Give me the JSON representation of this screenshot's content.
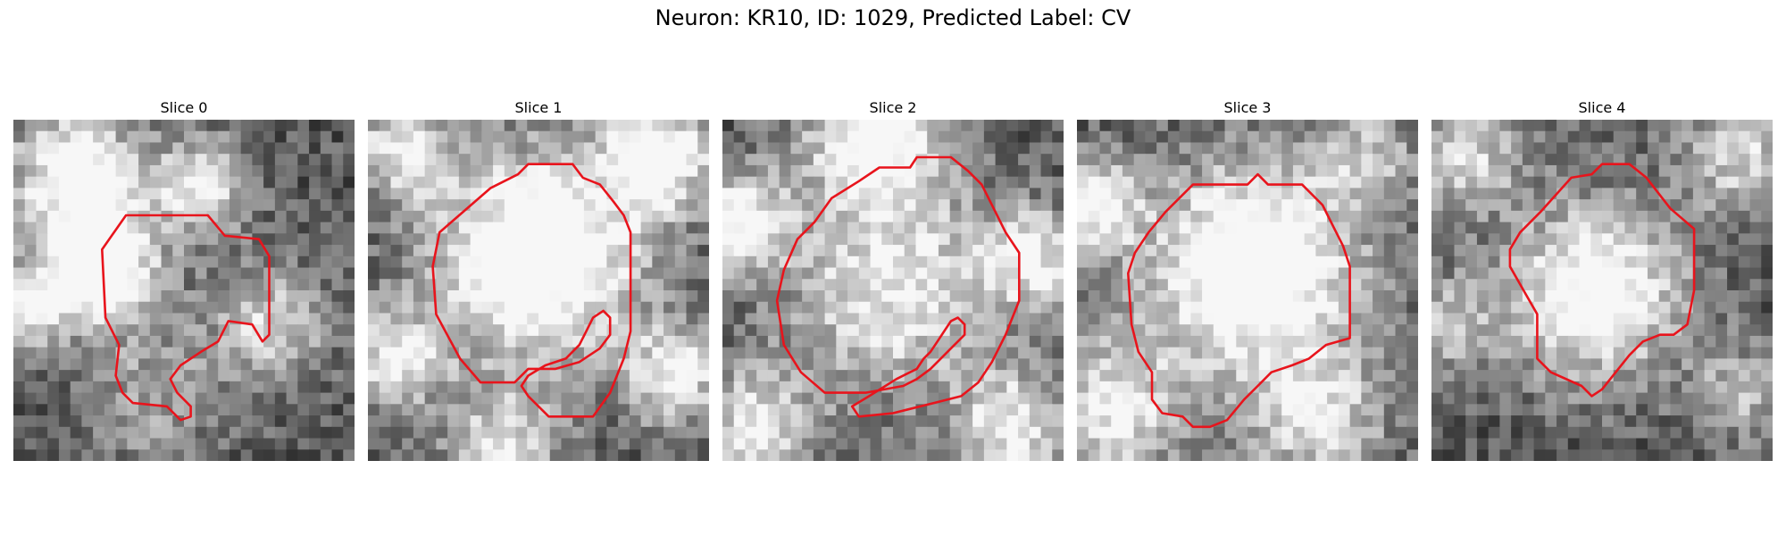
{
  "figure": {
    "title": "Neuron: KR10, ID: 1029, Predicted Label: CV"
  },
  "contour_color": "#e8141c",
  "grid_size": 30,
  "panels": [
    {
      "title": "Slice 0",
      "seed": 11,
      "blobs": [
        [
          0.25,
          0.42,
          0.12,
          0.9
        ],
        [
          0.18,
          0.15,
          0.14,
          0.7
        ],
        [
          0.55,
          0.2,
          0.1,
          0.6
        ],
        [
          0.75,
          0.6,
          0.12,
          0.5
        ],
        [
          0.05,
          0.55,
          0.08,
          0.6
        ],
        [
          0.4,
          0.8,
          0.15,
          0.3
        ]
      ],
      "contour": [
        [
          0.33,
          0.28
        ],
        [
          0.57,
          0.28
        ],
        [
          0.62,
          0.34
        ],
        [
          0.72,
          0.35
        ],
        [
          0.75,
          0.4
        ],
        [
          0.75,
          0.63
        ],
        [
          0.73,
          0.65
        ],
        [
          0.7,
          0.6
        ],
        [
          0.63,
          0.59
        ],
        [
          0.6,
          0.65
        ],
        [
          0.55,
          0.68
        ],
        [
          0.49,
          0.72
        ],
        [
          0.46,
          0.76
        ],
        [
          0.48,
          0.8
        ],
        [
          0.52,
          0.84
        ],
        [
          0.52,
          0.87
        ],
        [
          0.49,
          0.88
        ],
        [
          0.45,
          0.84
        ],
        [
          0.35,
          0.83
        ],
        [
          0.32,
          0.8
        ],
        [
          0.3,
          0.75
        ],
        [
          0.31,
          0.66
        ],
        [
          0.27,
          0.58
        ],
        [
          0.26,
          0.38
        ]
      ]
    },
    {
      "title": "Slice 1",
      "seed": 23,
      "blobs": [
        [
          0.5,
          0.4,
          0.22,
          0.9
        ],
        [
          0.1,
          0.08,
          0.1,
          0.6
        ],
        [
          0.85,
          0.1,
          0.12,
          0.7
        ],
        [
          0.08,
          0.7,
          0.1,
          0.6
        ],
        [
          0.9,
          0.75,
          0.1,
          0.6
        ],
        [
          0.4,
          0.95,
          0.12,
          0.5
        ]
      ],
      "contour": [
        [
          0.36,
          0.2
        ],
        [
          0.44,
          0.16
        ],
        [
          0.47,
          0.13
        ],
        [
          0.6,
          0.13
        ],
        [
          0.63,
          0.17
        ],
        [
          0.68,
          0.19
        ],
        [
          0.72,
          0.24
        ],
        [
          0.75,
          0.28
        ],
        [
          0.77,
          0.33
        ],
        [
          0.77,
          0.62
        ],
        [
          0.75,
          0.7
        ],
        [
          0.71,
          0.8
        ],
        [
          0.66,
          0.87
        ],
        [
          0.53,
          0.87
        ],
        [
          0.47,
          0.81
        ],
        [
          0.45,
          0.78
        ],
        [
          0.47,
          0.75
        ],
        [
          0.52,
          0.72
        ],
        [
          0.58,
          0.7
        ],
        [
          0.62,
          0.66
        ],
        [
          0.64,
          0.62
        ],
        [
          0.66,
          0.58
        ],
        [
          0.69,
          0.56
        ],
        [
          0.71,
          0.58
        ],
        [
          0.71,
          0.63
        ],
        [
          0.68,
          0.67
        ],
        [
          0.62,
          0.71
        ],
        [
          0.55,
          0.73
        ],
        [
          0.47,
          0.73
        ],
        [
          0.43,
          0.77
        ],
        [
          0.33,
          0.77
        ],
        [
          0.27,
          0.7
        ],
        [
          0.2,
          0.57
        ],
        [
          0.19,
          0.43
        ],
        [
          0.21,
          0.33
        ]
      ]
    },
    {
      "title": "Slice 2",
      "seed": 37,
      "blobs": [
        [
          0.5,
          0.5,
          0.22,
          0.6
        ],
        [
          0.45,
          0.05,
          0.15,
          0.7
        ],
        [
          0.9,
          0.4,
          0.1,
          0.6
        ],
        [
          0.05,
          0.3,
          0.1,
          0.7
        ],
        [
          0.1,
          0.9,
          0.12,
          0.6
        ],
        [
          0.85,
          0.9,
          0.12,
          0.6
        ]
      ],
      "contour": [
        [
          0.4,
          0.18
        ],
        [
          0.46,
          0.14
        ],
        [
          0.55,
          0.14
        ],
        [
          0.57,
          0.11
        ],
        [
          0.67,
          0.11
        ],
        [
          0.72,
          0.15
        ],
        [
          0.76,
          0.19
        ],
        [
          0.8,
          0.27
        ],
        [
          0.83,
          0.33
        ],
        [
          0.87,
          0.39
        ],
        [
          0.87,
          0.53
        ],
        [
          0.83,
          0.63
        ],
        [
          0.79,
          0.71
        ],
        [
          0.75,
          0.77
        ],
        [
          0.7,
          0.81
        ],
        [
          0.62,
          0.83
        ],
        [
          0.5,
          0.86
        ],
        [
          0.4,
          0.87
        ],
        [
          0.38,
          0.84
        ],
        [
          0.43,
          0.81
        ],
        [
          0.51,
          0.76
        ],
        [
          0.57,
          0.73
        ],
        [
          0.59,
          0.7
        ],
        [
          0.61,
          0.68
        ],
        [
          0.63,
          0.65
        ],
        [
          0.65,
          0.62
        ],
        [
          0.67,
          0.59
        ],
        [
          0.69,
          0.58
        ],
        [
          0.71,
          0.6
        ],
        [
          0.71,
          0.63
        ],
        [
          0.68,
          0.66
        ],
        [
          0.64,
          0.7
        ],
        [
          0.61,
          0.73
        ],
        [
          0.57,
          0.76
        ],
        [
          0.53,
          0.78
        ],
        [
          0.42,
          0.8
        ],
        [
          0.3,
          0.8
        ],
        [
          0.23,
          0.74
        ],
        [
          0.18,
          0.66
        ],
        [
          0.16,
          0.53
        ],
        [
          0.18,
          0.44
        ],
        [
          0.22,
          0.35
        ],
        [
          0.27,
          0.3
        ],
        [
          0.32,
          0.23
        ]
      ]
    },
    {
      "title": "Slice 3",
      "seed": 53,
      "blobs": [
        [
          0.52,
          0.43,
          0.22,
          0.9
        ],
        [
          0.1,
          0.85,
          0.15,
          0.6
        ],
        [
          0.7,
          0.88,
          0.15,
          0.5
        ],
        [
          0.05,
          0.25,
          0.1,
          0.6
        ],
        [
          0.85,
          0.1,
          0.1,
          0.4
        ]
      ],
      "contour": [
        [
          0.34,
          0.19
        ],
        [
          0.5,
          0.19
        ],
        [
          0.53,
          0.16
        ],
        [
          0.56,
          0.19
        ],
        [
          0.66,
          0.19
        ],
        [
          0.72,
          0.25
        ],
        [
          0.76,
          0.33
        ],
        [
          0.78,
          0.37
        ],
        [
          0.8,
          0.43
        ],
        [
          0.8,
          0.64
        ],
        [
          0.73,
          0.66
        ],
        [
          0.68,
          0.7
        ],
        [
          0.63,
          0.72
        ],
        [
          0.57,
          0.74
        ],
        [
          0.53,
          0.78
        ],
        [
          0.49,
          0.82
        ],
        [
          0.44,
          0.88
        ],
        [
          0.39,
          0.9
        ],
        [
          0.34,
          0.9
        ],
        [
          0.31,
          0.87
        ],
        [
          0.25,
          0.86
        ],
        [
          0.22,
          0.82
        ],
        [
          0.22,
          0.74
        ],
        [
          0.18,
          0.68
        ],
        [
          0.16,
          0.6
        ],
        [
          0.15,
          0.45
        ],
        [
          0.17,
          0.39
        ],
        [
          0.21,
          0.33
        ],
        [
          0.26,
          0.27
        ]
      ]
    },
    {
      "title": "Slice 4",
      "seed": 71,
      "blobs": [
        [
          0.48,
          0.5,
          0.18,
          0.8
        ],
        [
          0.1,
          0.1,
          0.12,
          0.5
        ],
        [
          0.9,
          0.1,
          0.12,
          0.5
        ],
        [
          0.05,
          0.6,
          0.1,
          0.4
        ],
        [
          0.9,
          0.8,
          0.1,
          0.4
        ]
      ],
      "contour": [
        [
          0.41,
          0.17
        ],
        [
          0.47,
          0.16
        ],
        [
          0.5,
          0.13
        ],
        [
          0.58,
          0.13
        ],
        [
          0.63,
          0.17
        ],
        [
          0.7,
          0.26
        ],
        [
          0.77,
          0.32
        ],
        [
          0.77,
          0.5
        ],
        [
          0.75,
          0.6
        ],
        [
          0.71,
          0.63
        ],
        [
          0.67,
          0.63
        ],
        [
          0.62,
          0.65
        ],
        [
          0.58,
          0.69
        ],
        [
          0.54,
          0.74
        ],
        [
          0.5,
          0.79
        ],
        [
          0.47,
          0.81
        ],
        [
          0.44,
          0.78
        ],
        [
          0.35,
          0.74
        ],
        [
          0.31,
          0.7
        ],
        [
          0.31,
          0.57
        ],
        [
          0.27,
          0.5
        ],
        [
          0.23,
          0.43
        ],
        [
          0.23,
          0.38
        ],
        [
          0.26,
          0.33
        ],
        [
          0.32,
          0.27
        ]
      ]
    }
  ]
}
